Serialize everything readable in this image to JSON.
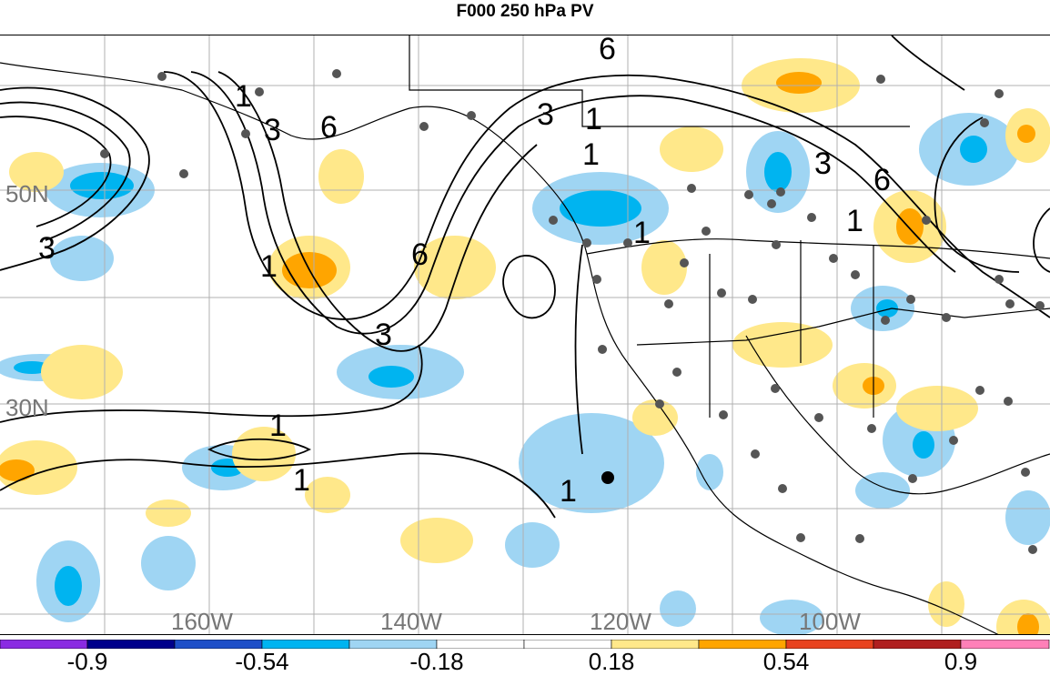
{
  "title": "F000 250 hPa PV",
  "map": {
    "lat_labels": [
      "50N",
      "30N"
    ],
    "lon_labels": [
      "160W",
      "140W",
      "120W",
      "100W"
    ],
    "contour_labels": [
      "1",
      "3",
      "6",
      "1",
      "3",
      "6",
      "3",
      "1",
      "1",
      "6",
      "3",
      "1",
      "6",
      "1",
      "1",
      "1",
      "3",
      "1"
    ]
  },
  "colorbar": {
    "colors": [
      "#8a2be2",
      "#00008b",
      "#1e4fc8",
      "#00b4f0",
      "#9fd5f3",
      "#ffffff",
      "#ffffff",
      "#ffe88a",
      "#ffa500",
      "#e8421e",
      "#b01f1f",
      "#ff80b8"
    ],
    "tick_labels": [
      "-0.9",
      "-0.54",
      "-0.18",
      "0.18",
      "0.54",
      "0.9"
    ]
  }
}
